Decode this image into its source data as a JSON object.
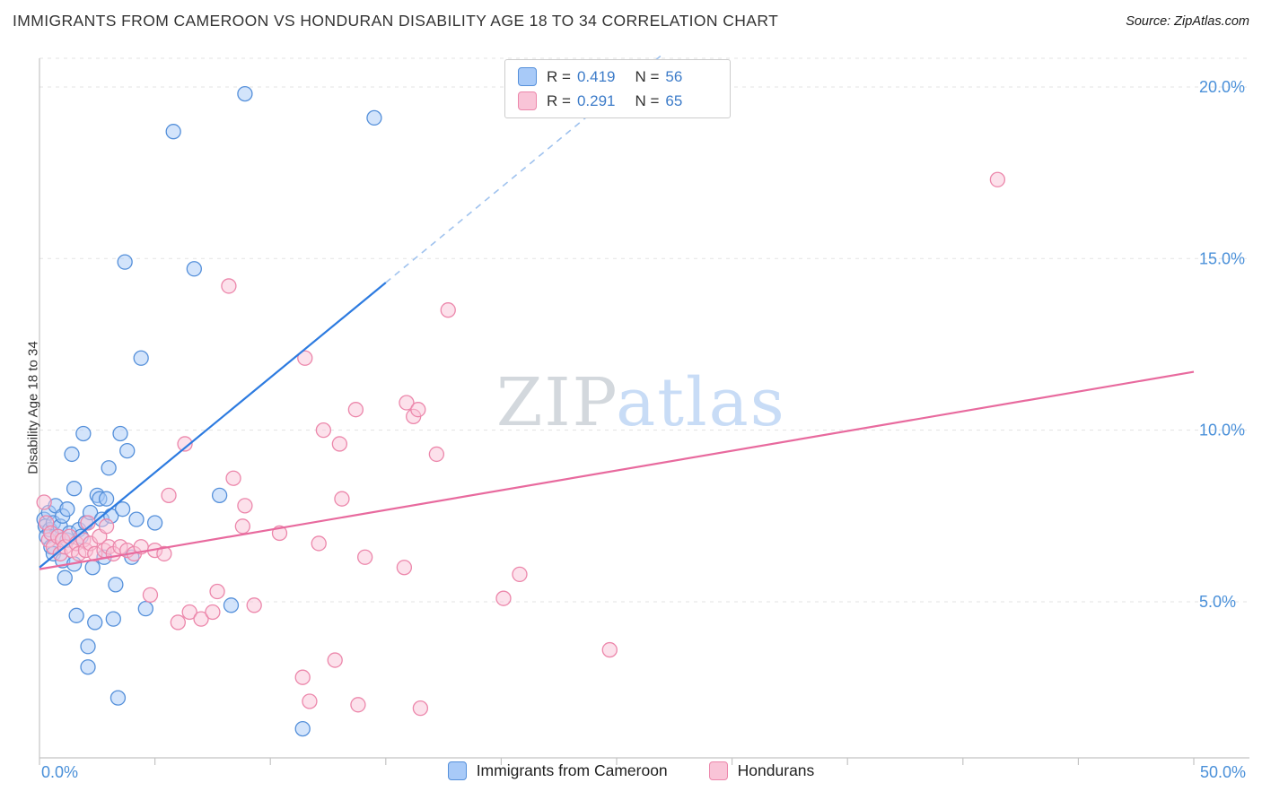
{
  "title": "IMMIGRANTS FROM CAMEROON VS HONDURAN DISABILITY AGE 18 TO 34 CORRELATION CHART",
  "source": "Source: ZipAtlas.com",
  "watermark": {
    "part1": "ZIP",
    "part2": "atlas"
  },
  "axes": {
    "y_label": "Disability Age 18 to 34"
  },
  "legend_box": {
    "rows": [
      {
        "r_label": "R =",
        "r_value": "0.419",
        "n_label": "N =",
        "n_value": "56"
      },
      {
        "r_label": "R =",
        "r_value": "0.291",
        "n_label": "N =",
        "n_value": "65"
      }
    ]
  },
  "bottom_legend": {
    "items": [
      {
        "label": "Immigrants from Cameroon"
      },
      {
        "label": "Hondurans"
      }
    ]
  },
  "colors": {
    "cameroon_fill": "#a8caf8",
    "cameroon_stroke": "#5590da",
    "honduran_fill": "#f9c4d7",
    "honduran_stroke": "#ec87ab",
    "cameroon_trend": "#2d7be0",
    "cameroon_trend_ext": "#9fc2ee",
    "honduran_trend": "#e86a9e",
    "tick_label": "#4a90d9",
    "grid": "#e3e3e3",
    "axis": "#c4c4c4"
  },
  "chart_data": {
    "type": "scatter",
    "title": "IMMIGRANTS FROM CAMEROON VS HONDURAN DISABILITY AGE 18 TO 34 CORRELATION CHART",
    "xlabel": "",
    "ylabel": "Disability Age 18 to 34",
    "x_axis": {
      "min": 0,
      "max": 50,
      "unit": "%",
      "ticks": [
        0,
        5,
        10,
        15,
        20,
        25,
        30,
        35,
        40,
        45,
        50
      ]
    },
    "x_tick_labels": [
      "0.0%",
      "50.0%"
    ],
    "y_axis": {
      "min": 0,
      "max": 21,
      "unit": "%",
      "ticks": [
        {
          "value": 20,
          "label": "20.0%"
        },
        {
          "value": 15,
          "label": "15.0%"
        },
        {
          "value": 10,
          "label": "10.0%"
        },
        {
          "value": 5,
          "label": "5.0%"
        }
      ]
    },
    "grid": true,
    "legend_position": "top-center",
    "series": [
      {
        "name": "Immigrants from Cameroon",
        "R": 0.419,
        "N": 56,
        "fill": "#a8caf8",
        "stroke": "#5590da",
        "points": [
          [
            0.2,
            7.4
          ],
          [
            0.25,
            7.2
          ],
          [
            0.3,
            6.9
          ],
          [
            0.4,
            7.6
          ],
          [
            0.45,
            7.1
          ],
          [
            0.5,
            6.6
          ],
          [
            0.6,
            7.3
          ],
          [
            0.6,
            6.4
          ],
          [
            0.7,
            7.8
          ],
          [
            0.8,
            6.9
          ],
          [
            0.9,
            7.2
          ],
          [
            1.0,
            6.2
          ],
          [
            1.0,
            7.5
          ],
          [
            1.1,
            5.7
          ],
          [
            1.2,
            6.8
          ],
          [
            1.2,
            7.7
          ],
          [
            1.3,
            7.0
          ],
          [
            1.4,
            9.3
          ],
          [
            1.5,
            8.3
          ],
          [
            1.5,
            6.1
          ],
          [
            1.6,
            4.6
          ],
          [
            1.7,
            7.1
          ],
          [
            1.8,
            6.9
          ],
          [
            1.9,
            9.9
          ],
          [
            2.0,
            7.3
          ],
          [
            2.1,
            3.7
          ],
          [
            2.1,
            3.1
          ],
          [
            2.2,
            7.6
          ],
          [
            2.3,
            6.0
          ],
          [
            2.4,
            4.4
          ],
          [
            2.5,
            8.1
          ],
          [
            2.6,
            8.0
          ],
          [
            2.7,
            7.4
          ],
          [
            2.8,
            6.3
          ],
          [
            2.9,
            8.0
          ],
          [
            3.0,
            8.9
          ],
          [
            3.1,
            7.5
          ],
          [
            3.2,
            4.5
          ],
          [
            3.3,
            5.5
          ],
          [
            3.4,
            2.2
          ],
          [
            3.5,
            9.9
          ],
          [
            3.6,
            7.7
          ],
          [
            3.7,
            14.9
          ],
          [
            3.8,
            9.4
          ],
          [
            4.0,
            6.3
          ],
          [
            4.2,
            7.4
          ],
          [
            4.4,
            12.1
          ],
          [
            4.6,
            4.8
          ],
          [
            5.0,
            7.3
          ],
          [
            5.8,
            18.7
          ],
          [
            6.7,
            14.7
          ],
          [
            7.8,
            8.1
          ],
          [
            8.3,
            4.9
          ],
          [
            8.9,
            19.8
          ],
          [
            11.4,
            1.3
          ],
          [
            14.5,
            19.1
          ]
        ],
        "trend": {
          "solid": [
            [
              0,
              6.0
            ],
            [
              15,
              14.3
            ]
          ],
          "dashed": [
            [
              15,
              14.3
            ],
            [
              26.9,
              20.9
            ]
          ],
          "color": "#2d7be0",
          "dash_color": "#9fc2ee"
        }
      },
      {
        "name": "Hondurans",
        "R": 0.291,
        "N": 65,
        "fill": "#f9c4d7",
        "stroke": "#ec87ab",
        "points": [
          [
            0.2,
            7.9
          ],
          [
            0.3,
            7.3
          ],
          [
            0.4,
            6.8
          ],
          [
            0.5,
            7.0
          ],
          [
            0.6,
            6.6
          ],
          [
            0.8,
            6.9
          ],
          [
            0.9,
            6.4
          ],
          [
            1.0,
            6.8
          ],
          [
            1.1,
            6.6
          ],
          [
            1.3,
            6.9
          ],
          [
            1.4,
            6.5
          ],
          [
            1.6,
            6.7
          ],
          [
            1.7,
            6.4
          ],
          [
            1.9,
            6.8
          ],
          [
            2.0,
            6.5
          ],
          [
            2.1,
            7.3
          ],
          [
            2.2,
            6.7
          ],
          [
            2.4,
            6.4
          ],
          [
            2.6,
            6.9
          ],
          [
            2.8,
            6.5
          ],
          [
            2.9,
            7.2
          ],
          [
            3.0,
            6.6
          ],
          [
            3.2,
            6.4
          ],
          [
            3.5,
            6.6
          ],
          [
            3.8,
            6.5
          ],
          [
            4.1,
            6.4
          ],
          [
            4.4,
            6.6
          ],
          [
            5.0,
            6.5
          ],
          [
            5.4,
            6.4
          ],
          [
            4.8,
            5.2
          ],
          [
            5.6,
            8.1
          ],
          [
            6.0,
            4.4
          ],
          [
            6.3,
            9.6
          ],
          [
            6.5,
            4.7
          ],
          [
            7.0,
            4.5
          ],
          [
            7.5,
            4.7
          ],
          [
            7.7,
            5.3
          ],
          [
            8.2,
            14.2
          ],
          [
            8.4,
            8.6
          ],
          [
            8.8,
            7.2
          ],
          [
            8.9,
            7.8
          ],
          [
            9.3,
            4.9
          ],
          [
            10.4,
            7.0
          ],
          [
            11.4,
            2.8
          ],
          [
            11.5,
            12.1
          ],
          [
            11.7,
            2.1
          ],
          [
            12.1,
            6.7
          ],
          [
            12.3,
            10.0
          ],
          [
            12.8,
            3.3
          ],
          [
            13.0,
            9.6
          ],
          [
            13.1,
            8.0
          ],
          [
            13.7,
            10.6
          ],
          [
            13.8,
            2.0
          ],
          [
            14.1,
            6.3
          ],
          [
            15.8,
            6.0
          ],
          [
            15.9,
            10.8
          ],
          [
            16.2,
            10.4
          ],
          [
            16.4,
            10.6
          ],
          [
            16.5,
            1.9
          ],
          [
            17.2,
            9.3
          ],
          [
            17.7,
            13.5
          ],
          [
            20.1,
            5.1
          ],
          [
            20.8,
            5.8
          ],
          [
            24.7,
            3.6
          ],
          [
            41.5,
            17.3
          ]
        ],
        "trend": {
          "solid": [
            [
              0,
              5.95
            ],
            [
              50,
              11.7
            ]
          ],
          "color": "#e86a9e"
        }
      }
    ]
  }
}
